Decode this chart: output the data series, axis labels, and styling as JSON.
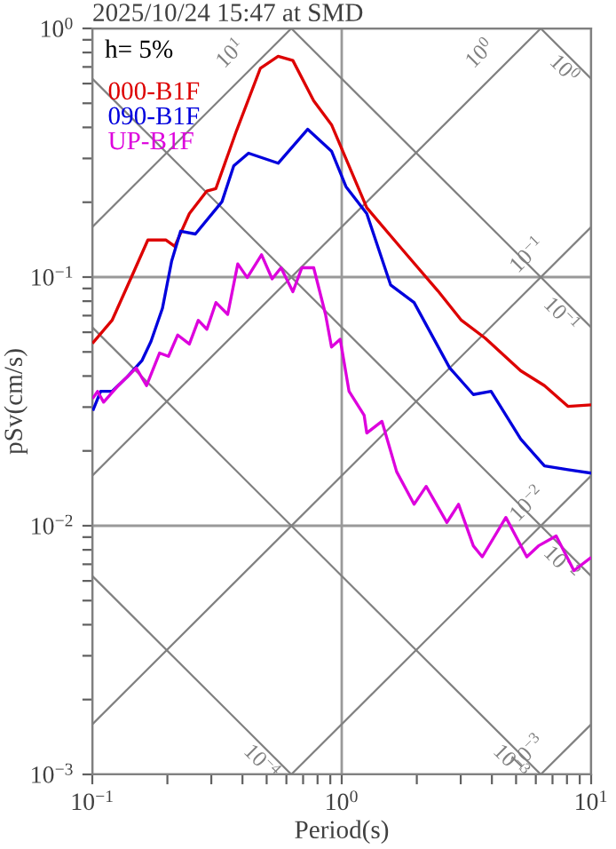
{
  "chart_data": {
    "type": "line",
    "title": "2025/10/24 15:47 at SMD",
    "xlabel": "Period(s)",
    "ylabel": "pSv(cm/s)",
    "annotations": [
      "h= 5%",
      {
        "text": "10$^{1}$",
        "x": 0.628,
        "y": 1
      },
      {
        "text": "10$^{0}$",
        "x": 6.28,
        "y": 1
      },
      {
        "text": "10$^{−1}$",
        "x": 10,
        "y": 0.159
      },
      {
        "text": "10$^{−2}$",
        "x": 10,
        "y": 0.0159
      },
      {
        "text": "10$^{−3}$",
        "x": 10,
        "y": 0.00159
      },
      {
        "text": "10$^{0}$",
        "x": 10,
        "y": 0.628
      },
      {
        "text": "10$^{−1}$",
        "x": 10,
        "y": 0.0628
      },
      {
        "text": "10$^{−2}$",
        "x": 10,
        "y": 0.00628
      },
      {
        "text": "10$^{−3}$",
        "x": 6.28,
        "y": 0.001
      },
      {
        "text": "10$^{−4}$",
        "x": 0.628,
        "y": 0.001
      }
    ],
    "log": "xy",
    "grid": true,
    "legend": "top left",
    "xlim": [
      0.1,
      10
    ],
    "ylim": [
      0.001,
      1
    ],
    "xticks": [
      {
        "value": 0.1,
        "label": "10$^{−1}$"
      },
      {
        "value": 0.2,
        "label": null
      },
      {
        "value": 0.3,
        "label": null
      },
      {
        "value": 0.4,
        "label": null
      },
      {
        "value": 0.5,
        "label": null
      },
      {
        "value": 0.6,
        "label": null
      },
      {
        "value": 0.7,
        "label": null
      },
      {
        "value": 0.8,
        "label": null
      },
      {
        "value": 0.9,
        "label": null
      },
      {
        "value": 1,
        "label": "10$^{0}$"
      },
      {
        "value": 2,
        "label": null
      },
      {
        "value": 3,
        "label": null
      },
      {
        "value": 4,
        "label": null
      },
      {
        "value": 5,
        "label": null
      },
      {
        "value": 6,
        "label": null
      },
      {
        "value": 7,
        "label": null
      },
      {
        "value": 8,
        "label": null
      },
      {
        "value": 9,
        "label": null
      },
      {
        "value": 10,
        "label": "10$^{1}$"
      }
    ],
    "yticks": [
      {
        "value": 0.001,
        "label": "10$^{−3}$"
      },
      {
        "value": 0.002,
        "label": null
      },
      {
        "value": 0.003,
        "label": null
      },
      {
        "value": 0.004,
        "label": null
      },
      {
        "value": 0.005,
        "label": null
      },
      {
        "value": 0.006,
        "label": null
      },
      {
        "value": 0.007,
        "label": null
      },
      {
        "value": 0.008,
        "label": null
      },
      {
        "value": 0.009,
        "label": null
      },
      {
        "value": 0.01,
        "label": "10$^{−2}$"
      },
      {
        "value": 0.02,
        "label": null
      },
      {
        "value": 0.03,
        "label": null
      },
      {
        "value": 0.04,
        "label": null
      },
      {
        "value": 0.05,
        "label": null
      },
      {
        "value": 0.06,
        "label": null
      },
      {
        "value": 0.07,
        "label": null
      },
      {
        "value": 0.08,
        "label": null
      },
      {
        "value": 0.09,
        "label": null
      },
      {
        "value": 0.1,
        "label": "10$^{−1}$"
      },
      {
        "value": 0.2,
        "label": null
      },
      {
        "value": 0.3,
        "label": null
      },
      {
        "value": 0.4,
        "label": null
      },
      {
        "value": 0.5,
        "label": null
      },
      {
        "value": 0.6,
        "label": null
      },
      {
        "value": 0.7,
        "label": null
      },
      {
        "value": 0.8,
        "label": null
      },
      {
        "value": 0.9,
        "label": null
      },
      {
        "value": 1,
        "label": "10$^{0}$"
      }
    ],
    "series": [
      {
        "color": "#808080",
        "x": [
          0.1,
          0.628
        ],
        "values": [
          0.159,
          1
        ]
      },
      {
        "color": "#808080",
        "x": [
          0.1,
          6.28
        ],
        "values": [
          0.0159,
          1
        ]
      },
      {
        "color": "#808080",
        "x": [
          0.1,
          10
        ],
        "values": [
          0.00159,
          0.159
        ]
      },
      {
        "color": "#808080",
        "x": [
          0.628,
          10
        ],
        "values": [
          0.001,
          0.0159
        ]
      },
      {
        "color": "#808080",
        "x": [
          6.28,
          10
        ],
        "values": [
          0.001,
          0.00159
        ]
      },
      {
        "color": "#808080",
        "x": [
          6.28,
          10
        ],
        "values": [
          1,
          0.628
        ]
      },
      {
        "color": "#808080",
        "x": [
          0.628,
          10
        ],
        "values": [
          1,
          0.0628
        ]
      },
      {
        "color": "#808080",
        "x": [
          0.1,
          10
        ],
        "values": [
          0.628,
          0.00628
        ]
      },
      {
        "color": "#808080",
        "x": [
          0.1,
          6.28
        ],
        "values": [
          0.0628,
          0.001
        ]
      },
      {
        "color": "#808080",
        "x": [
          0.1,
          0.628
        ],
        "values": [
          0.00628,
          0.001
        ]
      },
      {
        "name": "000-B1F",
        "color": "#dd0000",
        "x": [
          0.101,
          0.12,
          0.146,
          0.167,
          0.197,
          0.214,
          0.245,
          0.288,
          0.313,
          0.379,
          0.472,
          0.556,
          0.637,
          0.772,
          0.91,
          1.26,
          1.75,
          2.43,
          3.02,
          3.76,
          5.22,
          6.5,
          8.07,
          9.9
        ],
        "values": [
          0.0547,
          0.067,
          0.104,
          0.141,
          0.141,
          0.133,
          0.18,
          0.222,
          0.227,
          0.389,
          0.692,
          0.772,
          0.743,
          0.512,
          0.41,
          0.19,
          0.129,
          0.088,
          0.067,
          0.0568,
          0.042,
          0.0366,
          0.0302,
          0.0306
        ]
      },
      {
        "name": "090-B1F",
        "color": "#0000dd",
        "x": [
          0.101,
          0.108,
          0.12,
          0.138,
          0.158,
          0.172,
          0.191,
          0.208,
          0.226,
          0.259,
          0.331,
          0.369,
          0.423,
          0.556,
          0.73,
          0.91,
          1.04,
          1.26,
          1.57,
          1.95,
          2.71,
          3.37,
          3.97,
          5.22,
          6.5,
          8.07,
          9.9
        ],
        "values": [
          0.0294,
          0.0347,
          0.0347,
          0.0397,
          0.0461,
          0.0552,
          0.0748,
          0.116,
          0.153,
          0.149,
          0.201,
          0.28,
          0.315,
          0.287,
          0.393,
          0.321,
          0.231,
          0.18,
          0.093,
          0.079,
          0.0431,
          0.0337,
          0.0347,
          0.0223,
          0.0174,
          0.0168,
          0.0163
        ]
      },
      {
        "name": "UP-B1F",
        "color": "#dd00dd",
        "x": [
          0.101,
          0.105,
          0.111,
          0.127,
          0.15,
          0.165,
          0.186,
          0.202,
          0.22,
          0.245,
          0.266,
          0.288,
          0.313,
          0.349,
          0.383,
          0.418,
          0.477,
          0.526,
          0.571,
          0.637,
          0.692,
          0.772,
          0.861,
          0.91,
          0.986,
          1.07,
          1.23,
          1.26,
          1.45,
          1.66,
          1.95,
          2.18,
          2.64,
          2.94,
          3.37,
          3.66,
          4.55,
          5.52,
          6.15,
          7.24,
          8.53,
          9.9
        ],
        "values": [
          0.0328,
          0.0347,
          0.0314,
          0.0366,
          0.0431,
          0.0366,
          0.0495,
          0.048,
          0.0585,
          0.0538,
          0.067,
          0.0617,
          0.079,
          0.0708,
          0.113,
          0.0995,
          0.123,
          0.0984,
          0.109,
          0.0873,
          0.109,
          0.109,
          0.0708,
          0.0523,
          0.0562,
          0.0347,
          0.0278,
          0.0236,
          0.0263,
          0.0165,
          0.0122,
          0.0144,
          0.0103,
          0.0122,
          0.0083,
          0.0075,
          0.0108,
          0.0075,
          0.0083,
          0.0091,
          0.0066,
          0.0074
        ]
      }
    ]
  }
}
